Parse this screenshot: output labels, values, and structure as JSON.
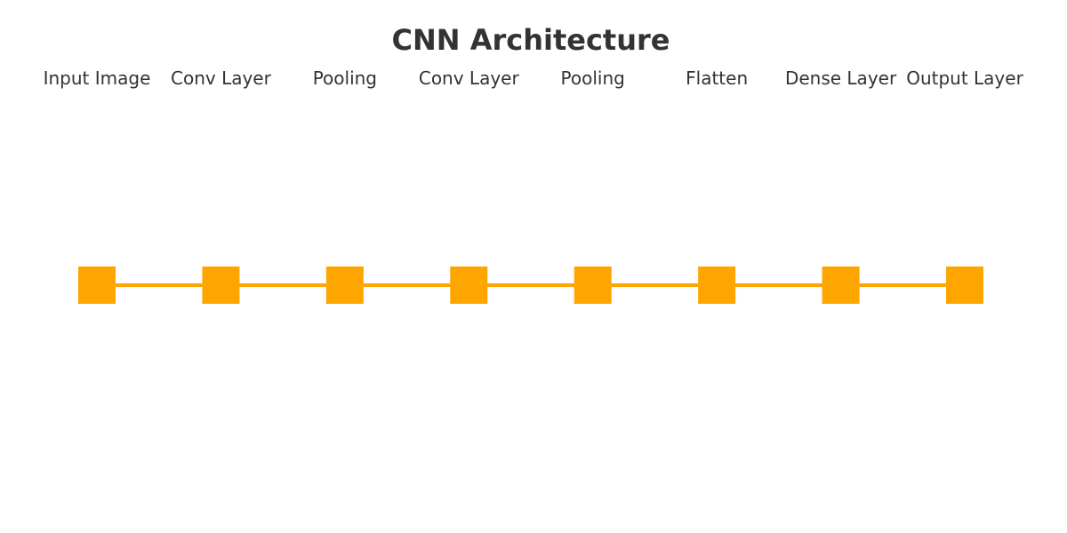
{
  "diagram": {
    "title": "CNN Architecture",
    "layers": [
      "Input Image",
      "Conv Layer",
      "Pooling",
      "Conv Layer",
      "Pooling",
      "Flatten",
      "Dense Layer",
      "Output Layer"
    ],
    "connections": [
      [
        "Input Image",
        "Conv Layer"
      ],
      [
        "Conv Layer",
        "Pooling"
      ],
      [
        "Pooling",
        "Conv Layer"
      ],
      [
        "Conv Layer",
        "Pooling"
      ],
      [
        "Pooling",
        "Flatten"
      ],
      [
        "Flatten",
        "Dense Layer"
      ],
      [
        "Dense Layer",
        "Output Layer"
      ]
    ]
  },
  "colors": {
    "node": "#FFA500",
    "edge": "#FFA500",
    "text": "#333333",
    "background": "#ffffff"
  }
}
